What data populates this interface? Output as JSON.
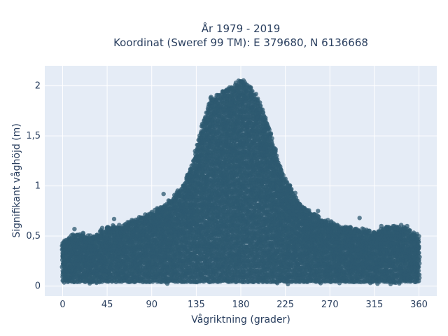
{
  "chart_data": {
    "type": "scatter",
    "title_line1": "År 1979 - 2019",
    "title_line2": "Koordinat (Sweref 99 TM): E 379680, N 6136668",
    "xlabel": "Vågriktning (grader)",
    "ylabel": "Signifikant våghöjd (m)",
    "xlim": [
      -18,
      378
    ],
    "ylim": [
      -0.1,
      2.2
    ],
    "x_ticks": [
      0,
      45,
      90,
      135,
      180,
      225,
      270,
      315,
      360
    ],
    "x_tick_labels": [
      "0",
      "45",
      "90",
      "135",
      "180",
      "225",
      "270",
      "315",
      "360"
    ],
    "y_ticks": [
      0,
      0.5,
      1,
      1.5,
      2
    ],
    "y_tick_labels": [
      "0",
      "0,5",
      "1",
      "1,5",
      "2"
    ],
    "grid": true,
    "colors": {
      "marker": "#2e5a70",
      "plot_bg": "#e5ecf6",
      "grid": "#ffffff"
    },
    "series": [
      {
        "approximate": true,
        "envelope_upper": [
          [
            0,
            0.45
          ],
          [
            15,
            0.55
          ],
          [
            30,
            0.5
          ],
          [
            45,
            0.6
          ],
          [
            60,
            0.62
          ],
          [
            75,
            0.68
          ],
          [
            90,
            0.75
          ],
          [
            100,
            0.8
          ],
          [
            110,
            0.88
          ],
          [
            120,
            1.0
          ],
          [
            130,
            1.2
          ],
          [
            140,
            1.6
          ],
          [
            150,
            1.9
          ],
          [
            160,
            1.95
          ],
          [
            170,
            2.0
          ],
          [
            180,
            2.1
          ],
          [
            190,
            2.0
          ],
          [
            200,
            1.85
          ],
          [
            210,
            1.55
          ],
          [
            220,
            1.2
          ],
          [
            230,
            1.0
          ],
          [
            240,
            0.85
          ],
          [
            255,
            0.72
          ],
          [
            270,
            0.65
          ],
          [
            285,
            0.6
          ],
          [
            300,
            0.58
          ],
          [
            315,
            0.55
          ],
          [
            330,
            0.6
          ],
          [
            345,
            0.6
          ],
          [
            360,
            0.5
          ]
        ],
        "envelope_lower": 0.02,
        "outliers": [
          [
            12,
            0.57
          ],
          [
            40,
            0.58
          ],
          [
            52,
            0.67
          ],
          [
            70,
            0.66
          ],
          [
            85,
            0.7
          ],
          [
            95,
            0.72
          ],
          [
            102,
            0.92
          ],
          [
            108,
            0.85
          ],
          [
            235,
            0.93
          ],
          [
            258,
            0.75
          ],
          [
            268,
            0.66
          ],
          [
            300,
            0.68
          ],
          [
            322,
            0.6
          ],
          [
            342,
            0.61
          ],
          [
            348,
            0.6
          ],
          [
            358,
            0.52
          ]
        ]
      }
    ]
  }
}
